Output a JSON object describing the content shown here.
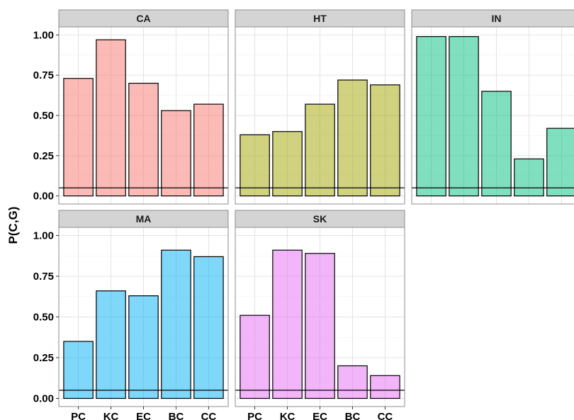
{
  "chart_data": {
    "type": "bar",
    "ylabel": "P(C,G)",
    "xlabel": "",
    "ylim": [
      0,
      1.0
    ],
    "y_ticks": [
      "0.00",
      "0.25",
      "0.50",
      "0.75",
      "1.00"
    ],
    "y_tick_values": [
      0,
      0.25,
      0.5,
      0.75,
      1.0
    ],
    "categories": [
      "PC",
      "KC",
      "EC",
      "BC",
      "CC"
    ],
    "reference_line": 0.05,
    "grid": true,
    "facets": [
      {
        "label": "CA",
        "color": "#F8766D",
        "values": [
          0.73,
          0.97,
          0.7,
          0.53,
          0.57
        ]
      },
      {
        "label": "HT",
        "color": "#A3A500",
        "values": [
          0.38,
          0.4,
          0.57,
          0.72,
          0.69
        ]
      },
      {
        "label": "IN",
        "color": "#00BF7D",
        "values": [
          0.99,
          0.99,
          0.65,
          0.23,
          0.42
        ]
      },
      {
        "label": "MA",
        "color": "#00B0F6",
        "values": [
          0.35,
          0.66,
          0.63,
          0.91,
          0.87
        ]
      },
      {
        "label": "SK",
        "color": "#E76BF3",
        "values": [
          0.51,
          0.91,
          0.89,
          0.2,
          0.14
        ]
      }
    ]
  }
}
